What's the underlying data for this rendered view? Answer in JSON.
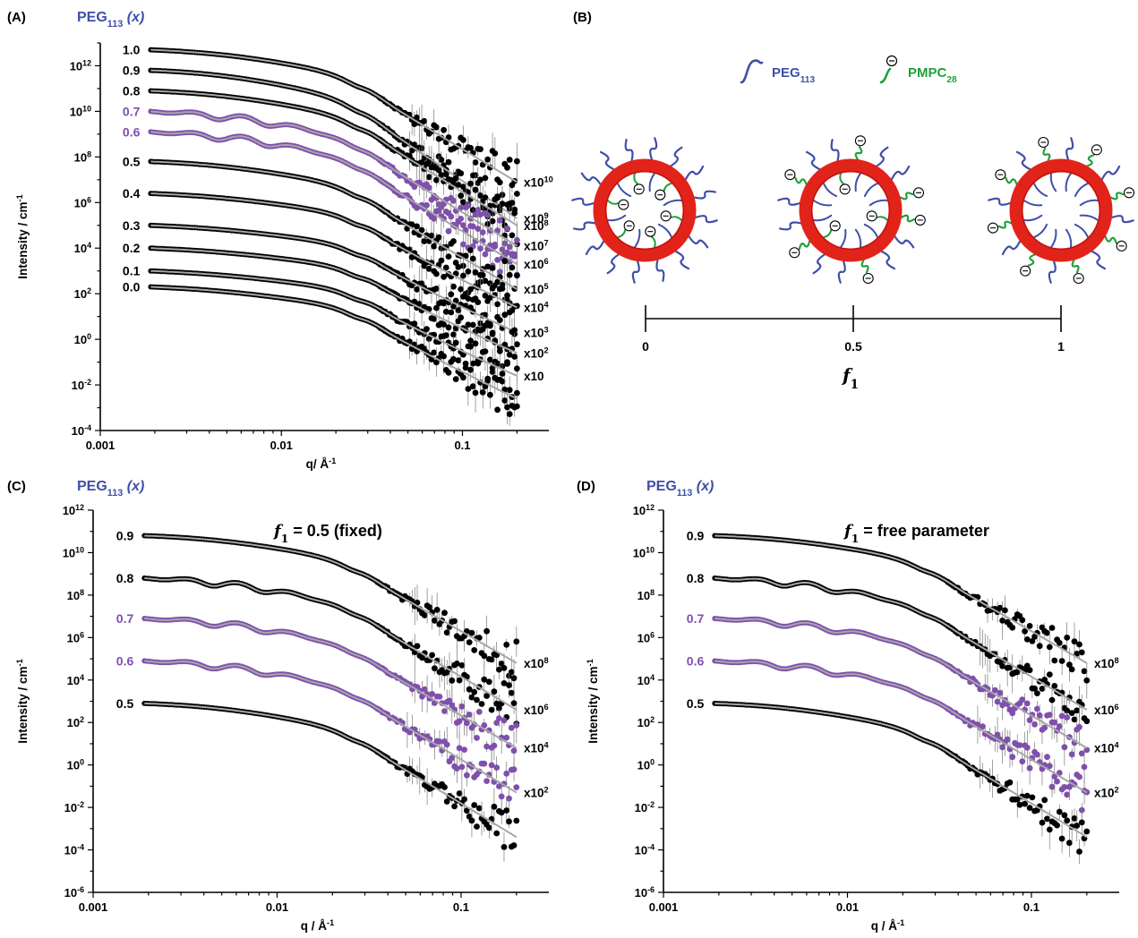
{
  "colors": {
    "black": "#000000",
    "purple": "#7f4fae",
    "fit": "#a6a6a6",
    "peg_blue": "#3f4fa8",
    "pmpc_green": "#21a03b",
    "vesicle_red": "#e2231a",
    "panel_title_blue": "#3f4fa8"
  },
  "chart_data": [
    {
      "type": "scatter",
      "panel": "(A)",
      "header": {
        "main": "PEG",
        "sub": "113",
        "tail": " (x)"
      },
      "xlabel": "q/ Å",
      "xlabel_sup": "-1",
      "ylabel": "Intensity / cm",
      "ylabel_sup": "-1",
      "xscale": "log",
      "yscale": "log",
      "xlim": [
        0.001,
        0.3
      ],
      "ylim_exp": [
        -4,
        13
      ],
      "x_ticks": [
        "0.001",
        "0.01",
        "0.1"
      ],
      "y_ticks": [
        {
          "base": "10",
          "sup": "-4"
        },
        {
          "base": "10",
          "sup": "-2"
        },
        {
          "base": "10",
          "sup": "0"
        },
        {
          "base": "10",
          "sup": "2"
        },
        {
          "base": "10",
          "sup": "4"
        },
        {
          "base": "10",
          "sup": "6"
        },
        {
          "base": "10",
          "sup": "8"
        },
        {
          "base": "10",
          "sup": "10"
        },
        {
          "base": "10",
          "sup": "12"
        }
      ],
      "series": [
        {
          "name": "1.0",
          "i0_log": 12.7,
          "tail_log": 6.9,
          "scale": {
            "base": "x10",
            "sup": "10"
          },
          "color": "black"
        },
        {
          "name": "0.9",
          "i0_log": 11.8,
          "tail_log": 5.3,
          "scale": {
            "base": "x10",
            "sup": "9"
          },
          "color": "black"
        },
        {
          "name": "0.8",
          "i0_log": 10.9,
          "tail_log": 5.0,
          "scale": {
            "base": "x10",
            "sup": "8"
          },
          "color": "black"
        },
        {
          "name": "0.7",
          "i0_log": 10.0,
          "tail_log": 4.1,
          "scale": {
            "base": "x10",
            "sup": "7"
          },
          "color": "purple"
        },
        {
          "name": "0.6",
          "i0_log": 9.1,
          "tail_log": 3.3,
          "scale": {
            "base": "x10",
            "sup": "6"
          },
          "color": "purple"
        },
        {
          "name": "0.5",
          "i0_log": 7.8,
          "tail_log": 2.2,
          "scale": {
            "base": "x10",
            "sup": "5"
          },
          "color": "black"
        },
        {
          "name": "0.4",
          "i0_log": 6.4,
          "tail_log": 1.4,
          "scale": {
            "base": "x10",
            "sup": "4"
          },
          "color": "black"
        },
        {
          "name": "0.3",
          "i0_log": 5.0,
          "tail_log": 0.3,
          "scale": {
            "base": "x10",
            "sup": "3"
          },
          "color": "black"
        },
        {
          "name": "0.2",
          "i0_log": 4.0,
          "tail_log": -0.6,
          "scale": {
            "base": "x10",
            "sup": "2"
          },
          "color": "black"
        },
        {
          "name": "0.1",
          "i0_log": 3.0,
          "tail_log": -1.6,
          "scale": {
            "base": "x10",
            "sup": ""
          },
          "color": "black"
        },
        {
          "name": "0.0",
          "i0_log": 2.3,
          "tail_log": -2.6,
          "scale": null,
          "color": "black"
        }
      ]
    },
    {
      "type": "diagram",
      "panel": "(B)",
      "legend": [
        {
          "main": "PEG",
          "sub": "113"
        },
        {
          "main": "PMPC",
          "sub": "28"
        }
      ],
      "axis_ticks": [
        "0",
        "0.5",
        "1"
      ],
      "axis_label": "f",
      "axis_label_sub": "1",
      "charge_symbol": "⊖"
    },
    {
      "type": "scatter",
      "panel": "(C)",
      "header": {
        "main": "PEG",
        "sub": "113",
        "tail": " (x)"
      },
      "title": "= 0.5 (fixed)",
      "title_symbol": "f",
      "title_sub": "1",
      "xlabel": "q / Å",
      "xlabel_sup": "-1",
      "ylabel": "Intensity / cm",
      "ylabel_sup": "-1",
      "xscale": "log",
      "yscale": "log",
      "xlim": [
        0.001,
        0.3
      ],
      "ylim_exp": [
        -6,
        12
      ],
      "x_ticks": [
        "0.001",
        "0.01",
        "0.1"
      ],
      "y_ticks": [
        {
          "base": "10",
          "sup": "-6"
        },
        {
          "base": "10",
          "sup": "-4"
        },
        {
          "base": "10",
          "sup": "-2"
        },
        {
          "base": "10",
          "sup": "0"
        },
        {
          "base": "10",
          "sup": "2"
        },
        {
          "base": "10",
          "sup": "4"
        },
        {
          "base": "10",
          "sup": "6"
        },
        {
          "base": "10",
          "sup": "8"
        },
        {
          "base": "10",
          "sup": "10"
        },
        {
          "base": "10",
          "sup": "12"
        }
      ],
      "series": [
        {
          "name": "0.9",
          "i0_log": 10.8,
          "tail_log": 4.8,
          "scale": {
            "base": "x10",
            "sup": "8"
          },
          "color": "black"
        },
        {
          "name": "0.8",
          "i0_log": 8.8,
          "tail_log": 2.6,
          "scale": {
            "base": "x10",
            "sup": "6"
          },
          "color": "black"
        },
        {
          "name": "0.7",
          "i0_log": 6.9,
          "tail_log": 0.8,
          "scale": {
            "base": "x10",
            "sup": "4"
          },
          "color": "purple"
        },
        {
          "name": "0.6",
          "i0_log": 4.9,
          "tail_log": -1.3,
          "scale": {
            "base": "x10",
            "sup": "2"
          },
          "color": "purple"
        },
        {
          "name": "0.5",
          "i0_log": 2.9,
          "tail_log": -3.4,
          "scale": null,
          "color": "black"
        }
      ]
    },
    {
      "type": "scatter",
      "panel": "(D)",
      "header": {
        "main": "PEG",
        "sub": "113",
        "tail": " (x)"
      },
      "title": "= free parameter",
      "title_symbol": "f",
      "title_sub": "1",
      "xlabel": "q / Å",
      "xlabel_sup": "-1",
      "ylabel": "Intensity / cm",
      "ylabel_sup": "-1",
      "xscale": "log",
      "yscale": "log",
      "xlim": [
        0.001,
        0.3
      ],
      "ylim_exp": [
        -6,
        12
      ],
      "x_ticks": [
        "0.001",
        "0.01",
        "0.1"
      ],
      "y_ticks": [
        {
          "base": "10",
          "sup": "-6"
        },
        {
          "base": "10",
          "sup": "-4"
        },
        {
          "base": "10",
          "sup": "-2"
        },
        {
          "base": "10",
          "sup": "0"
        },
        {
          "base": "10",
          "sup": "2"
        },
        {
          "base": "10",
          "sup": "4"
        },
        {
          "base": "10",
          "sup": "6"
        },
        {
          "base": "10",
          "sup": "8"
        },
        {
          "base": "10",
          "sup": "10"
        },
        {
          "base": "10",
          "sup": "12"
        }
      ],
      "series": [
        {
          "name": "0.9",
          "i0_log": 10.8,
          "tail_log": 4.8,
          "scale": {
            "base": "x10",
            "sup": "8"
          },
          "color": "black"
        },
        {
          "name": "0.8",
          "i0_log": 8.8,
          "tail_log": 2.6,
          "scale": {
            "base": "x10",
            "sup": "6"
          },
          "color": "black"
        },
        {
          "name": "0.7",
          "i0_log": 6.9,
          "tail_log": 0.8,
          "scale": {
            "base": "x10",
            "sup": "4"
          },
          "color": "purple"
        },
        {
          "name": "0.6",
          "i0_log": 4.9,
          "tail_log": -1.3,
          "scale": {
            "base": "x10",
            "sup": "2"
          },
          "color": "purple"
        },
        {
          "name": "0.5",
          "i0_log": 2.9,
          "tail_log": -3.4,
          "scale": null,
          "color": "black"
        }
      ]
    }
  ]
}
